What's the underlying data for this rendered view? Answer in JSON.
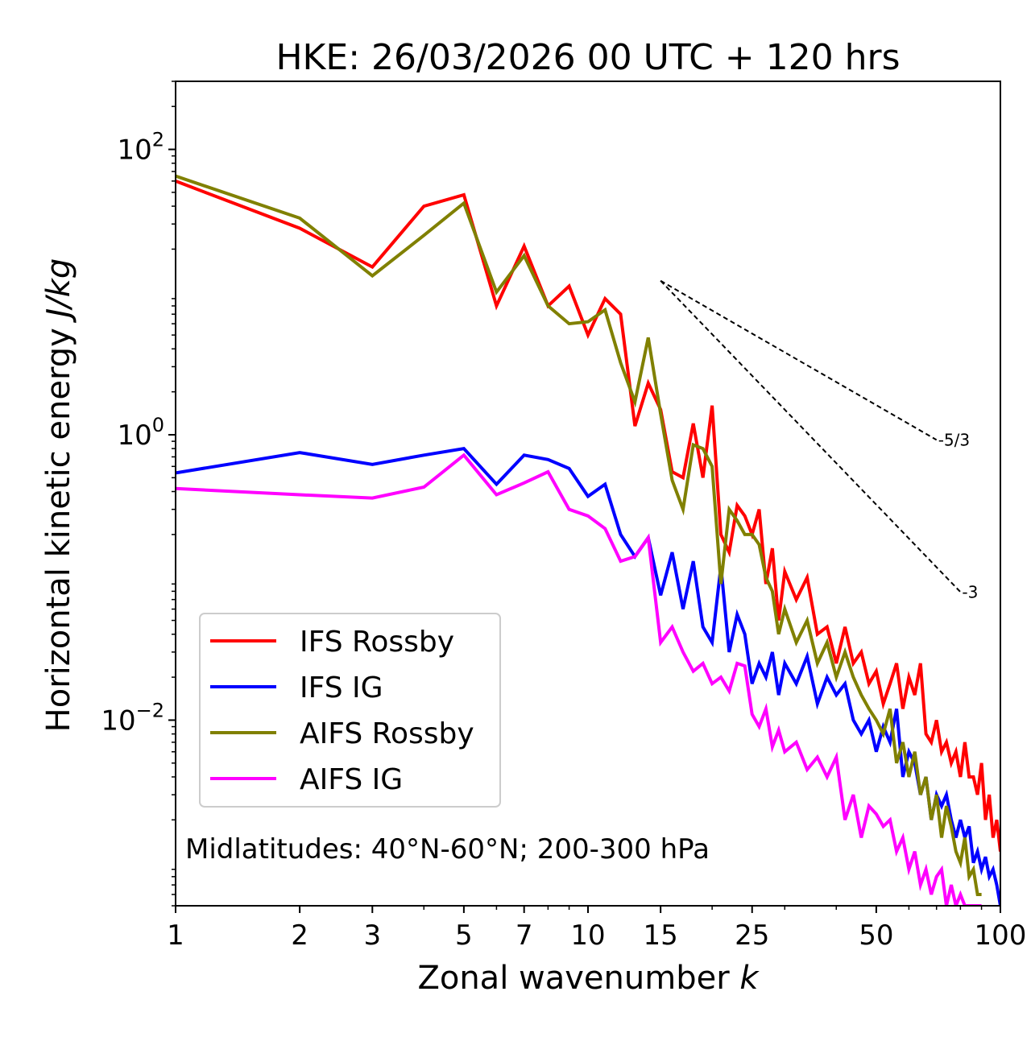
{
  "chart_data": {
    "type": "line",
    "title": "HKE: 26/03/2026 00 UTC + 120 hrs",
    "xlabel": "Zonal wavenumber",
    "xlabel_var": "k",
    "ylabel": "Horizontal kinetic energy",
    "ylabel_unit": "J/kg",
    "xscale": "log",
    "yscale": "log",
    "xlim": [
      1,
      100
    ],
    "ylim": [
      0.0005,
      300
    ],
    "x_ticks": [
      1,
      2,
      3,
      5,
      7,
      10,
      15,
      25,
      50,
      100
    ],
    "y_ticks": [
      {
        "value": 0.01,
        "base": "10",
        "exp": "−2"
      },
      {
        "value": 1,
        "base": "10",
        "exp": "0"
      },
      {
        "value": 100,
        "base": "10",
        "exp": "2"
      }
    ],
    "annotation": "Midlatitudes: 40°N-60°N; 200-300 hPa",
    "legend_position": "lower-left",
    "reference_lines": [
      {
        "label": "-5/3",
        "slope": -1.6667,
        "x_start": 15,
        "x_end": 70,
        "y_start": 12
      },
      {
        "label": "-3",
        "slope": -3,
        "x_start": 15,
        "x_end": 80,
        "y_start": 12
      }
    ],
    "series": [
      {
        "name": "IFS Rossby",
        "color": "#ff0000",
        "x": [
          1,
          2,
          3,
          4,
          5,
          6,
          7,
          8,
          9,
          10,
          11,
          12,
          13,
          14,
          15,
          16,
          17,
          18,
          19,
          20,
          21,
          22,
          23,
          24,
          25,
          26,
          27,
          28,
          29,
          30,
          32,
          34,
          36,
          38,
          40,
          42,
          44,
          46,
          48,
          50,
          52,
          54,
          56,
          58,
          60,
          62,
          64,
          66,
          68,
          70,
          72,
          74,
          76,
          78,
          80,
          82,
          84,
          86,
          88,
          90,
          92,
          94,
          96,
          98,
          100
        ],
        "y": [
          60,
          28,
          15,
          40,
          48,
          8,
          21,
          8,
          11,
          5,
          9,
          7,
          1.15,
          2.3,
          1.5,
          0.55,
          0.5,
          1.2,
          0.5,
          1.6,
          0.2,
          0.15,
          0.32,
          0.27,
          0.2,
          0.3,
          0.09,
          0.16,
          0.05,
          0.11,
          0.07,
          0.1,
          0.04,
          0.045,
          0.025,
          0.045,
          0.025,
          0.03,
          0.018,
          0.022,
          0.013,
          0.018,
          0.025,
          0.012,
          0.02,
          0.015,
          0.025,
          0.008,
          0.007,
          0.01,
          0.006,
          0.007,
          0.005,
          0.006,
          0.004,
          0.007,
          0.004,
          0.004,
          0.003,
          0.005,
          0.002,
          0.003,
          0.0015,
          0.002,
          0.0012
        ]
      },
      {
        "name": "IFS IG",
        "color": "#0000ff",
        "x": [
          1,
          2,
          3,
          4,
          5,
          6,
          7,
          8,
          9,
          10,
          11,
          12,
          13,
          14,
          15,
          16,
          17,
          18,
          19,
          20,
          21,
          22,
          23,
          24,
          25,
          26,
          27,
          28,
          29,
          30,
          32,
          34,
          36,
          38,
          40,
          42,
          44,
          46,
          48,
          50,
          52,
          54,
          56,
          58,
          60,
          62,
          64,
          66,
          68,
          70,
          72,
          74,
          76,
          78,
          80,
          82,
          84,
          86,
          88,
          90,
          92,
          94,
          96,
          98,
          100
        ],
        "y": [
          0.54,
          0.75,
          0.62,
          0.72,
          0.8,
          0.45,
          0.72,
          0.67,
          0.58,
          0.37,
          0.45,
          0.2,
          0.14,
          0.19,
          0.075,
          0.15,
          0.06,
          0.13,
          0.045,
          0.035,
          0.12,
          0.03,
          0.055,
          0.04,
          0.018,
          0.025,
          0.02,
          0.03,
          0.015,
          0.025,
          0.018,
          0.028,
          0.013,
          0.02,
          0.015,
          0.018,
          0.01,
          0.008,
          0.01,
          0.006,
          0.009,
          0.007,
          0.012,
          0.004,
          0.006,
          0.005,
          0.003,
          0.004,
          0.002,
          0.003,
          0.0025,
          0.003,
          0.002,
          0.0015,
          0.002,
          0.0015,
          0.0018,
          0.001,
          0.0012,
          0.0009,
          0.0011,
          0.0008,
          0.0009,
          0.0007,
          0.0005
        ]
      },
      {
        "name": "AIFS Rossby",
        "color": "#808000",
        "x": [
          1,
          2,
          3,
          4,
          5,
          6,
          7,
          8,
          9,
          10,
          11,
          12,
          13,
          14,
          15,
          16,
          17,
          18,
          19,
          20,
          21,
          22,
          23,
          24,
          25,
          26,
          27,
          28,
          29,
          30,
          32,
          34,
          36,
          38,
          40,
          42,
          44,
          46,
          48,
          50,
          52,
          54,
          56,
          58,
          60,
          62,
          64,
          66,
          68,
          70,
          72,
          74,
          76,
          78,
          80,
          82,
          84,
          86,
          88,
          90
        ],
        "y": [
          65,
          33,
          13,
          25,
          42,
          10,
          18,
          8,
          6,
          6.2,
          7.5,
          3.2,
          1.7,
          4.8,
          1.4,
          0.48,
          0.3,
          0.85,
          0.8,
          0.6,
          0.09,
          0.3,
          0.25,
          0.2,
          0.2,
          0.17,
          0.1,
          0.08,
          0.04,
          0.06,
          0.035,
          0.05,
          0.025,
          0.035,
          0.02,
          0.03,
          0.02,
          0.015,
          0.012,
          0.01,
          0.008,
          0.012,
          0.005,
          0.007,
          0.004,
          0.006,
          0.003,
          0.004,
          0.002,
          0.003,
          0.0015,
          0.0025,
          0.0018,
          0.0012,
          0.001,
          0.0015,
          0.0008,
          0.0009,
          0.0006,
          0.0006
        ]
      },
      {
        "name": "AIFS IG",
        "color": "#ff00ff",
        "x": [
          1,
          2,
          3,
          4,
          5,
          6,
          7,
          8,
          9,
          10,
          11,
          12,
          13,
          14,
          15,
          16,
          17,
          18,
          19,
          20,
          21,
          22,
          23,
          24,
          25,
          26,
          27,
          28,
          29,
          30,
          32,
          34,
          36,
          38,
          40,
          42,
          44,
          46,
          48,
          50,
          52,
          54,
          56,
          58,
          60,
          62,
          64,
          66,
          68,
          70,
          72,
          74,
          76,
          78,
          80,
          82,
          84,
          86,
          88,
          90
        ],
        "y": [
          0.42,
          0.38,
          0.36,
          0.43,
          0.72,
          0.38,
          0.46,
          0.55,
          0.3,
          0.27,
          0.22,
          0.13,
          0.14,
          0.19,
          0.035,
          0.045,
          0.03,
          0.022,
          0.025,
          0.018,
          0.02,
          0.016,
          0.025,
          0.024,
          0.011,
          0.009,
          0.012,
          0.0065,
          0.0085,
          0.006,
          0.007,
          0.0045,
          0.0055,
          0.004,
          0.0055,
          0.002,
          0.003,
          0.0015,
          0.0025,
          0.0022,
          0.0018,
          0.002,
          0.0012,
          0.0015,
          0.0009,
          0.0012,
          0.0007,
          0.0009,
          0.0006,
          0.0008,
          0.0009,
          0.0005,
          0.0007,
          0.0005,
          0.0006,
          0.0005,
          0.0005,
          0.0005,
          0.0005,
          0.0005
        ]
      }
    ]
  }
}
